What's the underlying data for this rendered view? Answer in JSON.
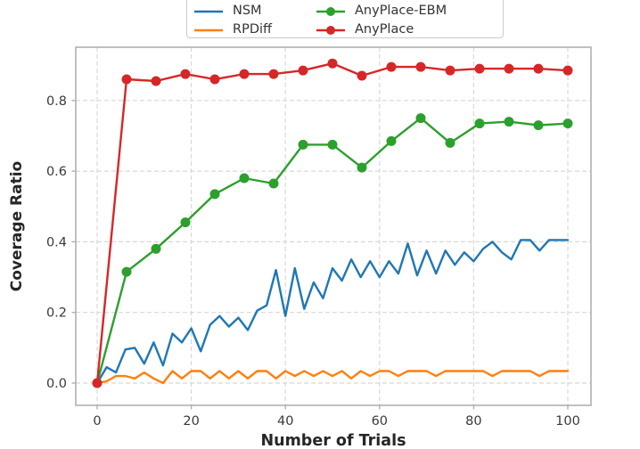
{
  "chart_data": {
    "type": "line",
    "title": "",
    "xlabel": "Number of Trials",
    "ylabel": "Coverage Ratio",
    "xlim": [
      -4.5,
      105
    ],
    "ylim": [
      -0.063,
      0.95
    ],
    "grid": true,
    "grid_style": "dashed",
    "legend_position": "top-center-outside",
    "x_ticks": [
      0,
      20,
      40,
      60,
      80,
      100
    ],
    "x_tick_labels": [
      "0",
      "20",
      "40",
      "60",
      "80",
      "100"
    ],
    "y_ticks": [
      0.0,
      0.2,
      0.4,
      0.6,
      0.8
    ],
    "y_tick_labels": [
      "0.0",
      "0.2",
      "0.4",
      "0.6",
      "0.8"
    ],
    "series": [
      {
        "name": "NSM",
        "color": "#1f77b4",
        "marker": "none",
        "x": [
          0,
          2,
          4,
          6,
          8,
          10,
          12,
          14,
          16,
          18,
          20,
          22,
          24,
          26,
          28,
          30,
          32,
          34,
          36,
          38,
          40,
          42,
          44,
          46,
          48,
          50,
          52,
          54,
          56,
          58,
          60,
          62,
          64,
          66,
          68,
          70,
          72,
          74,
          76,
          78,
          80,
          82,
          84,
          86,
          88,
          90,
          92,
          94,
          96,
          98,
          100
        ],
        "y": [
          0,
          0.045,
          0.03,
          0.095,
          0.1,
          0.055,
          0.115,
          0.05,
          0.14,
          0.115,
          0.155,
          0.09,
          0.165,
          0.19,
          0.16,
          0.185,
          0.15,
          0.205,
          0.22,
          0.32,
          0.19,
          0.325,
          0.21,
          0.285,
          0.24,
          0.325,
          0.29,
          0.35,
          0.3,
          0.345,
          0.3,
          0.345,
          0.31,
          0.395,
          0.305,
          0.375,
          0.31,
          0.375,
          0.335,
          0.37,
          0.345,
          0.38,
          0.4,
          0.37,
          0.35,
          0.405,
          0.405,
          0.375,
          0.405,
          0.405,
          0.405
        ]
      },
      {
        "name": "RPDiff",
        "color": "#ff7f0e",
        "marker": "none",
        "x": [
          0,
          2,
          4,
          6,
          8,
          10,
          12,
          14,
          16,
          18,
          20,
          22,
          24,
          26,
          28,
          30,
          32,
          34,
          36,
          38,
          40,
          42,
          44,
          46,
          48,
          50,
          52,
          54,
          56,
          58,
          60,
          62,
          64,
          66,
          68,
          70,
          72,
          74,
          76,
          78,
          80,
          82,
          84,
          86,
          88,
          90,
          92,
          94,
          96,
          98,
          100
        ],
        "y": [
          0,
          0.005,
          0.02,
          0.02,
          0.013,
          0.03,
          0.013,
          0.0,
          0.034,
          0.013,
          0.034,
          0.034,
          0.013,
          0.034,
          0.013,
          0.034,
          0.013,
          0.034,
          0.034,
          0.013,
          0.034,
          0.02,
          0.034,
          0.02,
          0.034,
          0.02,
          0.034,
          0.013,
          0.034,
          0.02,
          0.034,
          0.034,
          0.02,
          0.034,
          0.034,
          0.034,
          0.02,
          0.034,
          0.034,
          0.034,
          0.034,
          0.034,
          0.02,
          0.034,
          0.034,
          0.034,
          0.034,
          0.02,
          0.034,
          0.034,
          0.034
        ]
      },
      {
        "name": "AnyPlace-EBM",
        "color": "#2ca02c",
        "marker": "circle",
        "x": [
          0,
          6.25,
          12.5,
          18.75,
          25,
          31.25,
          37.5,
          43.75,
          50,
          56.25,
          62.5,
          68.75,
          75,
          81.25,
          87.5,
          93.75,
          100
        ],
        "y": [
          0,
          0.315,
          0.38,
          0.455,
          0.535,
          0.58,
          0.565,
          0.675,
          0.675,
          0.61,
          0.685,
          0.75,
          0.68,
          0.735,
          0.74,
          0.73,
          0.735
        ]
      },
      {
        "name": "AnyPlace",
        "color": "#d62728",
        "marker": "circle",
        "x": [
          0,
          6.25,
          12.5,
          18.75,
          25,
          31.25,
          37.5,
          43.75,
          50,
          56.25,
          62.5,
          68.75,
          75,
          81.25,
          87.5,
          93.75,
          100
        ],
        "y": [
          0,
          0.86,
          0.855,
          0.875,
          0.86,
          0.875,
          0.875,
          0.885,
          0.905,
          0.87,
          0.895,
          0.895,
          0.885,
          0.89,
          0.89,
          0.89,
          0.885
        ]
      }
    ],
    "style": {
      "grid_color": "#d8d8d8",
      "spine_color": "#b0b0b0",
      "tick_label_color": "#3a3a3a",
      "axis_label_color": "#262626",
      "legend_border_color": "#cccccc",
      "background": "#ffffff",
      "line_width": 2.4,
      "marker_radius": 5.5
    }
  }
}
